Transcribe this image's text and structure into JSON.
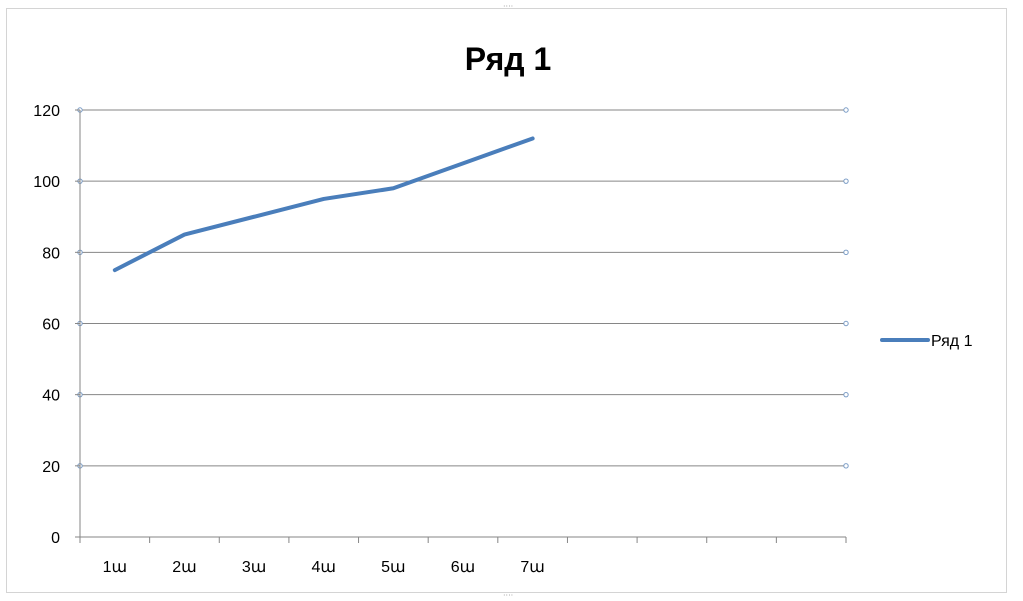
{
  "chart_data": {
    "type": "line",
    "title": "Ряд 1",
    "xlabel": "",
    "ylabel": "",
    "categories": [
      "1ա",
      "2ա",
      "3ա",
      "4ա",
      "5ա",
      "6ա",
      "7ա"
    ],
    "category_slots": 11,
    "series": [
      {
        "name": "Ряд 1",
        "values": [
          75,
          85,
          90,
          95,
          98,
          105,
          112
        ],
        "color": "#4a7ebb"
      }
    ],
    "ylim": [
      0,
      120
    ],
    "yticks": [
      0,
      20,
      40,
      60,
      80,
      100,
      120
    ],
    "grid": true,
    "legend_position": "right"
  }
}
